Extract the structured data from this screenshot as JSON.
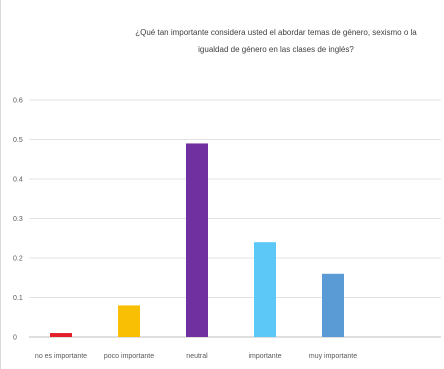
{
  "chart_data": {
    "type": "bar",
    "title": "¿Qué tan importante considera usted el abordar temas de género, sexismo o la igualdad de género en las clases de inglés?",
    "categories": [
      "no es importante",
      "poco importante",
      "neutral",
      "importante",
      "muy importante"
    ],
    "values": [
      0.01,
      0.08,
      0.49,
      0.24,
      0.16
    ],
    "colors": [
      "#e3202a",
      "#f8bf04",
      "#7030a0",
      "#5bc8f8",
      "#5b9bd5"
    ],
    "y_ticks": [
      "0",
      "0.1",
      "0.2",
      "0.3",
      "0.4",
      "0.5",
      "0.6"
    ],
    "ylim": [
      0,
      0.6
    ],
    "grid": "horizontal",
    "xlabel": "",
    "ylabel": ""
  }
}
